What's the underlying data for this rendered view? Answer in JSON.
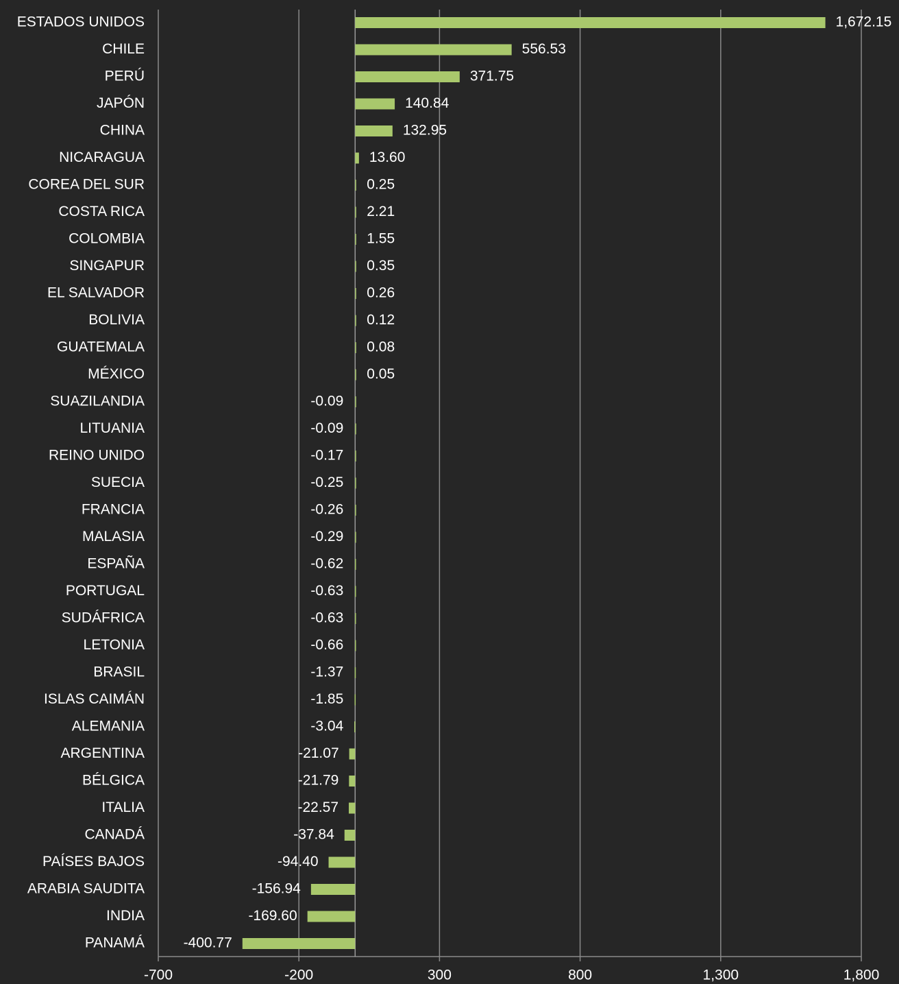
{
  "chart_data": {
    "type": "hbar",
    "categories": [
      "ESTADOS UNIDOS",
      "CHILE",
      "PERÚ",
      "JAPÓN",
      "CHINA",
      "NICARAGUA",
      "COREA DEL SUR",
      "COSTA RICA",
      "COLOMBIA",
      "SINGAPUR",
      "EL SALVADOR",
      "BOLIVIA",
      "GUATEMALA",
      "MÉXICO",
      "SUAZILANDIA",
      "LITUANIA",
      "REINO UNIDO",
      "SUECIA",
      "FRANCIA",
      "MALASIA",
      "ESPAÑA",
      "PORTUGAL",
      "SUDÁFRICA",
      "LETONIA",
      "BRASIL",
      "ISLAS CAIMÁN",
      "ALEMANIA",
      "ARGENTINA",
      "BÉLGICA",
      "ITALIA",
      "CANADÁ",
      "PAÍSES BAJOS",
      "ARABIA SAUDITA",
      "INDIA",
      "PANAMÁ"
    ],
    "values": [
      1672.15,
      556.53,
      371.75,
      140.84,
      132.95,
      13.6,
      0.25,
      2.21,
      1.55,
      0.35,
      0.26,
      0.12,
      0.08,
      0.05,
      -0.09,
      -0.09,
      -0.17,
      -0.25,
      -0.26,
      -0.29,
      -0.62,
      -0.63,
      -0.63,
      -0.66,
      -1.37,
      -1.85,
      -3.04,
      -21.07,
      -21.79,
      -22.57,
      -37.84,
      -94.4,
      -156.94,
      -169.6,
      -400.77
    ],
    "value_labels": [
      "1,672.15",
      "556.53",
      "371.75",
      "140.84",
      "132.95",
      "13.60",
      "0.25",
      "2.21",
      "1.55",
      "0.35",
      "0.26",
      "0.12",
      "0.08",
      "0.05",
      "-0.09",
      "-0.09",
      "-0.17",
      "-0.25",
      "-0.26",
      "-0.29",
      "-0.62",
      "-0.63",
      "-0.63",
      "-0.66",
      "-1.37",
      "-1.85",
      "-3.04",
      "-21.07",
      "-21.79",
      "-22.57",
      "-37.84",
      "-94.40",
      "-156.94",
      "-169.60",
      "-400.77"
    ],
    "color": "#a9c86c",
    "xlim": [
      -700,
      1800
    ],
    "xticks": [
      -700,
      -200,
      300,
      800,
      {
        "value": 1300,
        "label": "1,300"
      },
      {
        "value": 1800,
        "label": "1,800"
      }
    ],
    "grid": true
  }
}
